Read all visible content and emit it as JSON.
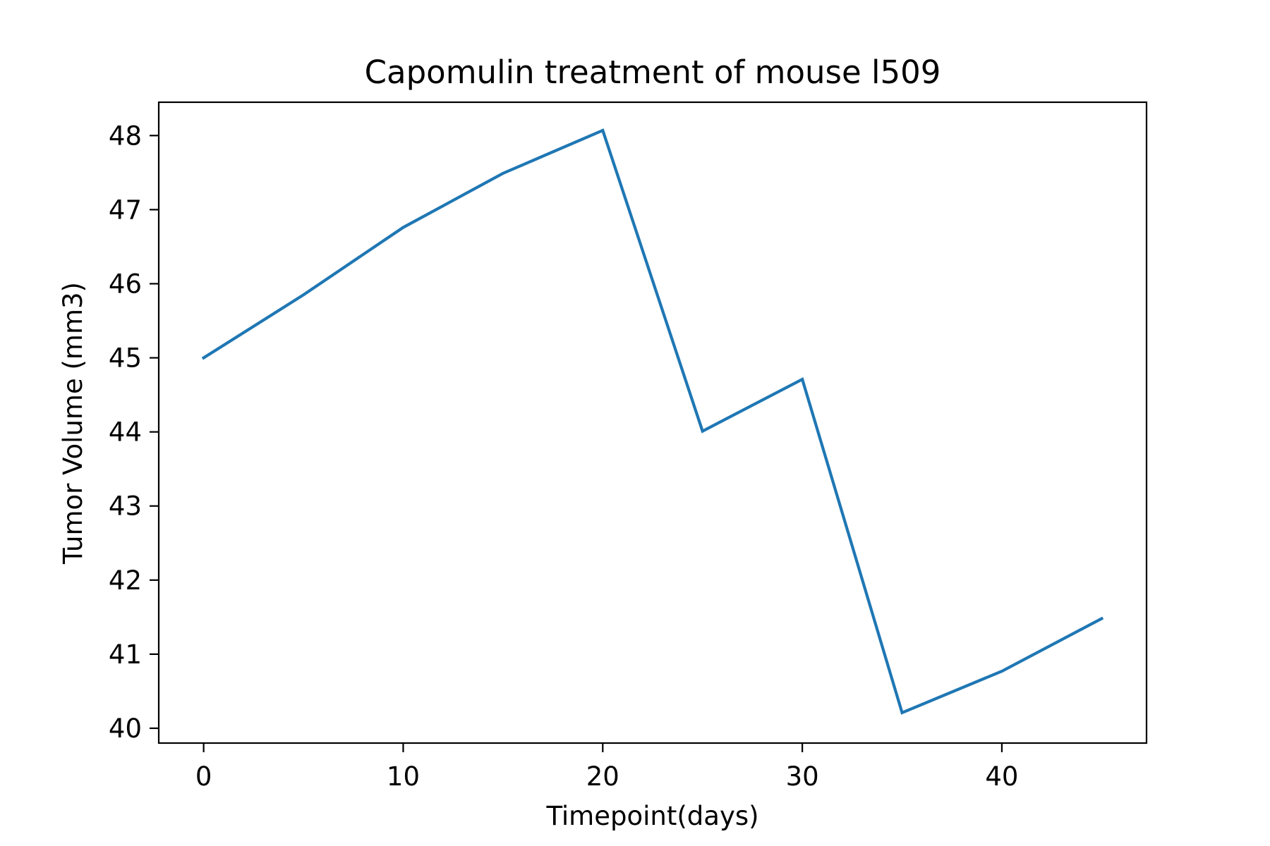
{
  "chart_data": {
    "type": "line",
    "title": "Capomulin treatment of mouse l509",
    "xlabel": "Timepoint(days)",
    "ylabel": "Tumor Volume (mm3)",
    "xlim": [
      -2.25,
      47.25
    ],
    "ylim": [
      39.8,
      48.45
    ],
    "xticks": [
      0,
      10,
      20,
      30,
      40
    ],
    "xtick_labels": [
      "0",
      "10",
      "20",
      "30",
      "40"
    ],
    "yticks": [
      40,
      41,
      42,
      43,
      44,
      45,
      46,
      47,
      48
    ],
    "ytick_labels": [
      "40",
      "41",
      "42",
      "43",
      "44",
      "45",
      "46",
      "47",
      "48"
    ],
    "grid": false,
    "legend": "none",
    "series": [
      {
        "color": "#1f77b4",
        "x": [
          0,
          5,
          10,
          15,
          20,
          25,
          30,
          35,
          40,
          45
        ],
        "y": [
          45.0,
          45.85,
          46.76,
          47.49,
          48.07,
          44.01,
          44.71,
          40.21,
          40.77,
          41.48
        ]
      }
    ]
  }
}
